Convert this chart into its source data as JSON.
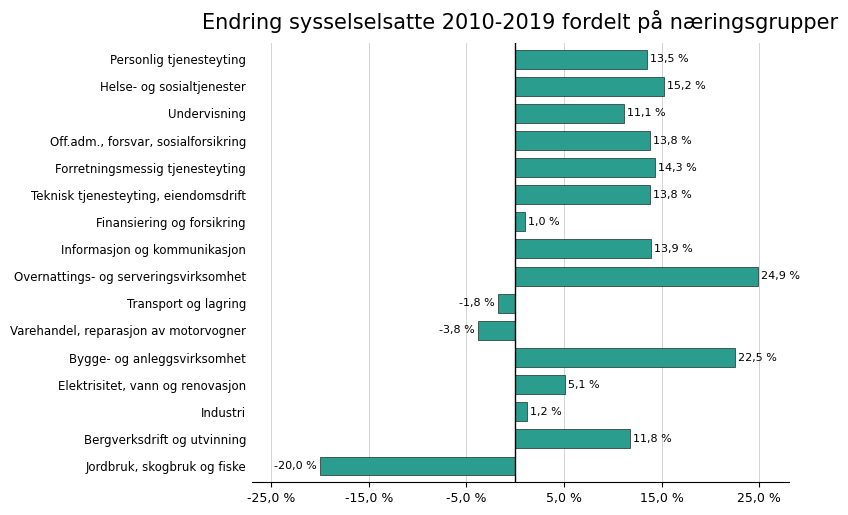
{
  "title": "Endring sysselselsatte 2010-2019 fordelt på næringsgrupper",
  "categories": [
    "Personlig tjenesteyting",
    "Helse- og sosialtjenester",
    "Undervisning",
    "Off.adm., forsvar, sosialforsikring",
    "Forretningsmessig tjenesteyting",
    "Teknisk tjenesteyting, eiendomsdrift",
    "Finansiering og forsikring",
    "Informasjon og kommunikasjon",
    "Overnattings- og serveringsvirksomhet",
    "Transport og lagring",
    "Varehandel, reparasjon av motorvogner",
    "Bygge- og anleggsvirksomhet",
    "Elektrisitet, vann og renovasjon",
    "Industri",
    "Bergverksdrift og utvinning",
    "Jordbruk, skogbruk og fiske"
  ],
  "values": [
    13.5,
    15.2,
    11.1,
    13.8,
    14.3,
    13.8,
    1.0,
    13.9,
    24.9,
    -1.8,
    -3.8,
    22.5,
    5.1,
    1.2,
    11.8,
    -20.0
  ],
  "bar_color": "#2a9d8f",
  "xlim": [
    -27,
    28
  ],
  "xticks": [
    -25,
    -15,
    -5,
    5,
    15,
    25
  ],
  "background_color": "#ffffff",
  "title_fontsize": 15,
  "label_fontsize": 8.5,
  "tick_fontsize": 9,
  "value_fontsize": 8
}
